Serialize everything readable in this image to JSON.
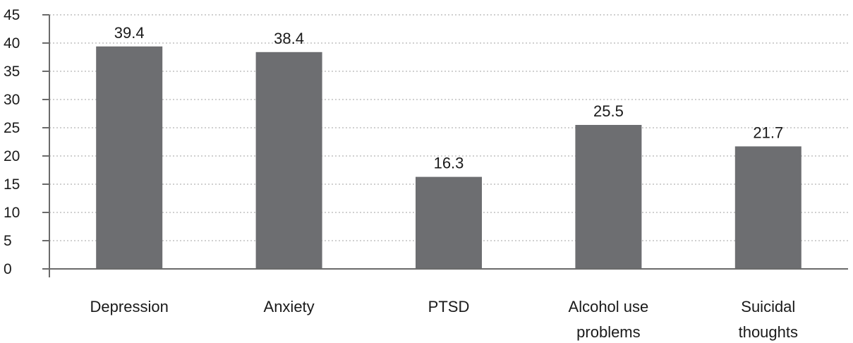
{
  "chart_data": {
    "type": "bar",
    "categories": [
      [
        "Depression"
      ],
      [
        "Anxiety"
      ],
      [
        "PTSD"
      ],
      [
        "Alcohol use",
        "problems"
      ],
      [
        "Suicidal",
        "thoughts"
      ]
    ],
    "values": [
      39.4,
      38.4,
      16.3,
      25.5,
      21.7
    ],
    "value_labels": [
      "39.4",
      "38.4",
      "16.3",
      "25.5",
      "21.7"
    ],
    "yticks": [
      0,
      5,
      10,
      15,
      20,
      25,
      30,
      35,
      40,
      45
    ],
    "ylim": [
      0,
      45
    ],
    "title": "",
    "xlabel": "",
    "ylabel": "",
    "grid": "horizontal dotted",
    "legend": "none",
    "colors": {
      "bar": "#6d6e71",
      "axis": "#6b6b6b",
      "grid": "#b5b5b5",
      "text": "#1a1a1a"
    }
  }
}
